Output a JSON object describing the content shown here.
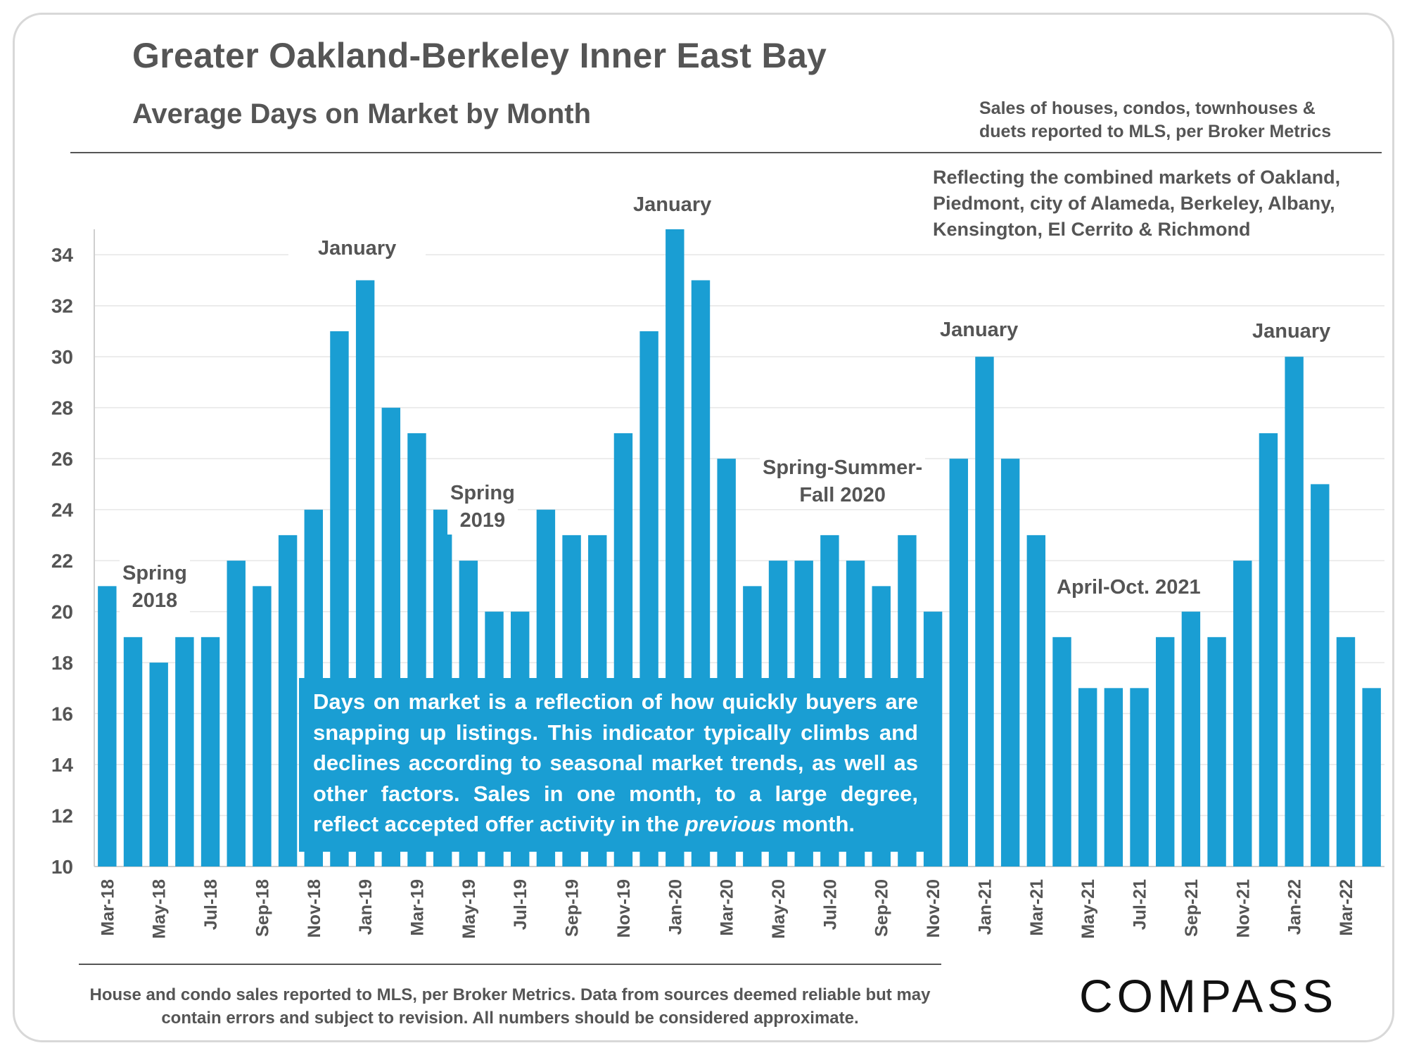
{
  "header": {
    "title": "Greater Oakland-Berkeley Inner East Bay",
    "subtitle": "Average Days on Market by Month",
    "sales_note_line1": "Sales of houses, condos, townhouses &",
    "sales_note_line2": "duets reported to MLS, per Broker Metrics",
    "markets_note_line1": "Reflecting the combined markets of Oakland,",
    "markets_note_line2": "Piedmont, city of Alameda, Berkeley, Albany,",
    "markets_note_line3": "Kensington, El Cerrito & Richmond"
  },
  "annotations": {
    "spring_2018_line1": "Spring",
    "spring_2018_line2": "2018",
    "january_2019": "January",
    "spring_2019_line1": "Spring",
    "spring_2019_line2": "2019",
    "january_2020": "January",
    "spring_summer_fall_line1": "Spring-Summer-",
    "spring_summer_fall_line2": "Fall 2020",
    "january_2021": "January",
    "april_oct_2021": "April-Oct.  2021",
    "january_2022": "January"
  },
  "info_box": {
    "text_before": "Days on market is a reflection of how quickly buyers are snapping up listings. This indicator typically climbs and declines according to seasonal market trends, as well as other factors. Sales in one month, to a large degree, reflect accepted offer activity in the ",
    "text_emphasis": "previous",
    "text_after": " month."
  },
  "footer": {
    "line1": "House and condo sales reported to MLS, per Broker Metrics. Data from sources deemed reliable but may",
    "line2": "contain errors and subject to revision. All numbers should be considered approximate.",
    "logo": "COMPASS"
  },
  "colors": {
    "bar": "#1a9ed3",
    "text": "#555555",
    "grid": "#e6e6e6"
  },
  "chart_data": {
    "type": "bar",
    "title": "Average Days on Market by Month",
    "xlabel": "",
    "ylabel": "",
    "ylim": [
      10,
      35
    ],
    "yticks": [
      10,
      12,
      14,
      16,
      18,
      20,
      22,
      24,
      26,
      28,
      30,
      32,
      34
    ],
    "grid": "horizontal",
    "categories": [
      "Mar-18",
      "Apr-18",
      "May-18",
      "Jun-18",
      "Jul-18",
      "Aug-18",
      "Sep-18",
      "Oct-18",
      "Nov-18",
      "Dec-18",
      "Jan-19",
      "Feb-19",
      "Mar-19",
      "Apr-19",
      "May-19",
      "Jun-19",
      "Jul-19",
      "Aug-19",
      "Sep-19",
      "Oct-19",
      "Nov-19",
      "Dec-19",
      "Jan-20",
      "Feb-20",
      "Mar-20",
      "Apr-20",
      "May-20",
      "Jun-20",
      "Jul-20",
      "Aug-20",
      "Sep-20",
      "Oct-20",
      "Nov-20",
      "Dec-20",
      "Jan-21",
      "Feb-21",
      "Mar-21",
      "Apr-21",
      "May-21",
      "Jun-21",
      "Jul-21",
      "Aug-21",
      "Sep-21",
      "Oct-21",
      "Nov-21",
      "Dec-21",
      "Jan-22",
      "Feb-22",
      "Mar-22",
      "Apr-22"
    ],
    "tick_labels_shown": [
      "Mar-18",
      "May-18",
      "Jul-18",
      "Sep-18",
      "Nov-18",
      "Jan-19",
      "Mar-19",
      "May-19",
      "Jul-19",
      "Sep-19",
      "Nov-19",
      "Jan-20",
      "Mar-20",
      "May-20",
      "Jul-20",
      "Sep-20",
      "Nov-20",
      "Jan-21",
      "Mar-21",
      "May-21",
      "Jul-21",
      "Sep-21",
      "Nov-21",
      "Jan-22",
      "Mar-22"
    ],
    "values": [
      21,
      19,
      18,
      19,
      19,
      22,
      21,
      23,
      24,
      31,
      33,
      28,
      27,
      24,
      22,
      20,
      20,
      24,
      23,
      23,
      27,
      31,
      35,
      33,
      26,
      21,
      22,
      22,
      23,
      22,
      21,
      23,
      20,
      26,
      30,
      26,
      23,
      19,
      17,
      17,
      17,
      19,
      20,
      19,
      22,
      27,
      30,
      25,
      19,
      17
    ]
  }
}
